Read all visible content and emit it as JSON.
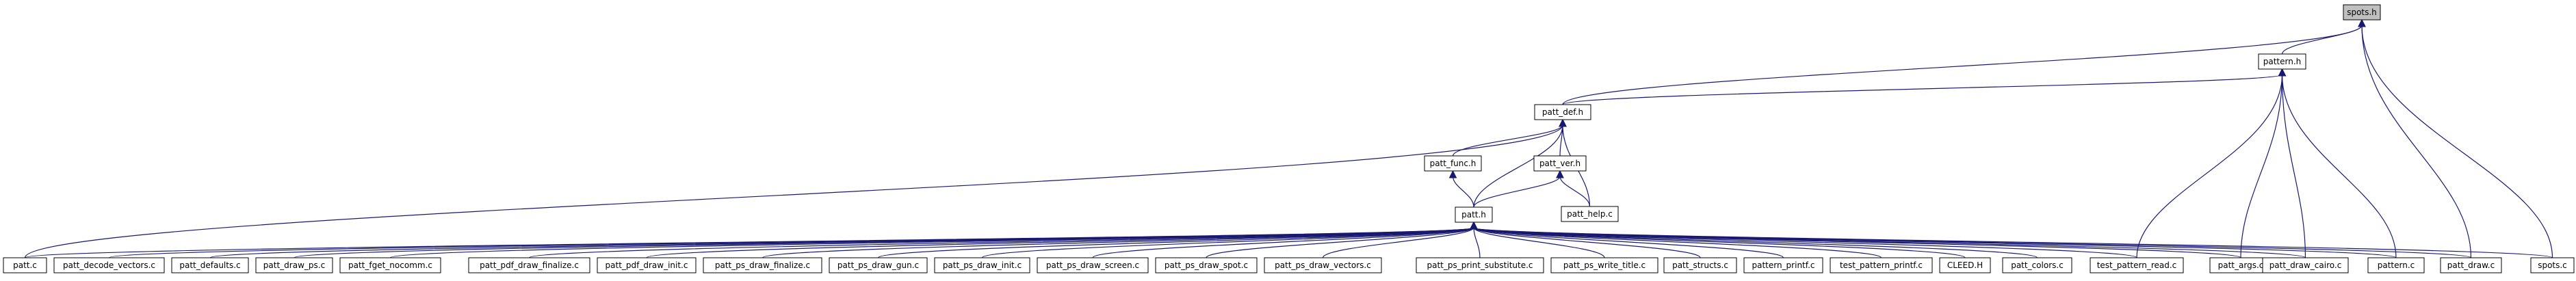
{
  "graph": {
    "nodes": [
      {
        "id": "spots_h",
        "label": "spots.h",
        "current": true
      },
      {
        "id": "pattern_h",
        "label": "pattern.h"
      },
      {
        "id": "patt_def_h",
        "label": "patt_def.h"
      },
      {
        "id": "patt_func_h",
        "label": "patt_func.h"
      },
      {
        "id": "patt_ver_h",
        "label": "patt_ver.h"
      },
      {
        "id": "patt_help_c",
        "label": "patt_help.c"
      },
      {
        "id": "patt_h",
        "label": "patt.h"
      },
      {
        "id": "patt_c",
        "label": "patt.c"
      },
      {
        "id": "patt_decode_vectors_c",
        "label": "patt_decode_vectors.c"
      },
      {
        "id": "patt_defaults_c",
        "label": "patt_defaults.c"
      },
      {
        "id": "patt_draw_ps_c",
        "label": "patt_draw_ps.c"
      },
      {
        "id": "patt_fget_nocomm_c",
        "label": "patt_fget_nocomm.c"
      },
      {
        "id": "patt_pdf_draw_finalize_c",
        "label": "patt_pdf_draw_finalize.c"
      },
      {
        "id": "patt_pdf_draw_init_c",
        "label": "patt_pdf_draw_init.c"
      },
      {
        "id": "patt_ps_draw_finalize_c",
        "label": "patt_ps_draw_finalize.c"
      },
      {
        "id": "patt_ps_draw_gun_c",
        "label": "patt_ps_draw_gun.c"
      },
      {
        "id": "patt_ps_draw_init_c",
        "label": "patt_ps_draw_init.c"
      },
      {
        "id": "patt_ps_draw_screen_c",
        "label": "patt_ps_draw_screen.c"
      },
      {
        "id": "patt_ps_draw_spot_c",
        "label": "patt_ps_draw_spot.c"
      },
      {
        "id": "patt_ps_draw_vectors_c",
        "label": "patt_ps_draw_vectors.c"
      },
      {
        "id": "patt_ps_print_substitute_c",
        "label": "patt_ps_print_substitute.c"
      },
      {
        "id": "patt_ps_write_title_c",
        "label": "patt_ps_write_title.c"
      },
      {
        "id": "patt_structs_c",
        "label": "patt_structs.c"
      },
      {
        "id": "pattern_printf_c",
        "label": "pattern_printf.c"
      },
      {
        "id": "test_pattern_printf_c",
        "label": "test_pattern_printf.c"
      },
      {
        "id": "CLEED_H",
        "label": "CLEED.H"
      },
      {
        "id": "patt_colors_c",
        "label": "patt_colors.c"
      },
      {
        "id": "test_pattern_read_c",
        "label": "test_pattern_read.c"
      },
      {
        "id": "patt_args_c",
        "label": "patt_args.c"
      },
      {
        "id": "patt_draw_cairo_c",
        "label": "patt_draw_cairo.c"
      },
      {
        "id": "pattern_c",
        "label": "pattern.c"
      },
      {
        "id": "patt_draw_c",
        "label": "patt_draw.c"
      },
      {
        "id": "spots_c",
        "label": "spots.c"
      }
    ],
    "edges": [
      [
        "pattern_h",
        "spots_h"
      ],
      [
        "patt_def_h",
        "spots_h"
      ],
      [
        "patt_draw_c",
        "spots_h"
      ],
      [
        "spots_c",
        "spots_h"
      ],
      [
        "patt_def_h",
        "pattern_h"
      ],
      [
        "test_pattern_read_c",
        "pattern_h"
      ],
      [
        "patt_args_c",
        "pattern_h"
      ],
      [
        "patt_draw_cairo_c",
        "pattern_h"
      ],
      [
        "pattern_c",
        "pattern_h"
      ],
      [
        "patt_c",
        "patt_def_h"
      ],
      [
        "patt_func_h",
        "patt_def_h"
      ],
      [
        "patt_ver_h",
        "patt_def_h"
      ],
      [
        "patt_h",
        "patt_def_h"
      ],
      [
        "patt_help_c",
        "patt_def_h"
      ],
      [
        "patt_help_c",
        "patt_ver_h"
      ],
      [
        "patt_h",
        "patt_func_h"
      ],
      [
        "patt_h",
        "patt_ver_h"
      ],
      [
        "patt_c",
        "patt_h"
      ],
      [
        "patt_decode_vectors_c",
        "patt_h"
      ],
      [
        "patt_defaults_c",
        "patt_h"
      ],
      [
        "patt_draw_ps_c",
        "patt_h"
      ],
      [
        "patt_fget_nocomm_c",
        "patt_h"
      ],
      [
        "patt_pdf_draw_finalize_c",
        "patt_h"
      ],
      [
        "patt_pdf_draw_init_c",
        "patt_h"
      ],
      [
        "patt_ps_draw_finalize_c",
        "patt_h"
      ],
      [
        "patt_ps_draw_gun_c",
        "patt_h"
      ],
      [
        "patt_ps_draw_init_c",
        "patt_h"
      ],
      [
        "patt_ps_draw_screen_c",
        "patt_h"
      ],
      [
        "patt_ps_draw_spot_c",
        "patt_h"
      ],
      [
        "patt_ps_draw_vectors_c",
        "patt_h"
      ],
      [
        "patt_ps_print_substitute_c",
        "patt_h"
      ],
      [
        "patt_ps_write_title_c",
        "patt_h"
      ],
      [
        "patt_structs_c",
        "patt_h"
      ],
      [
        "pattern_printf_c",
        "patt_h"
      ],
      [
        "test_pattern_printf_c",
        "patt_h"
      ],
      [
        "CLEED_H",
        "patt_h"
      ],
      [
        "patt_colors_c",
        "patt_h"
      ],
      [
        "test_pattern_read_c",
        "patt_h"
      ],
      [
        "patt_args_c",
        "patt_h"
      ],
      [
        "patt_draw_cairo_c",
        "patt_h"
      ],
      [
        "pattern_c",
        "patt_h"
      ],
      [
        "patt_draw_c",
        "patt_h"
      ],
      [
        "spots_c",
        "patt_h"
      ]
    ],
    "colors": {
      "edge": "#191970",
      "node_border": "#000000",
      "current_fill": "#bfbfbf",
      "node_fill": "#ffffff"
    }
  }
}
